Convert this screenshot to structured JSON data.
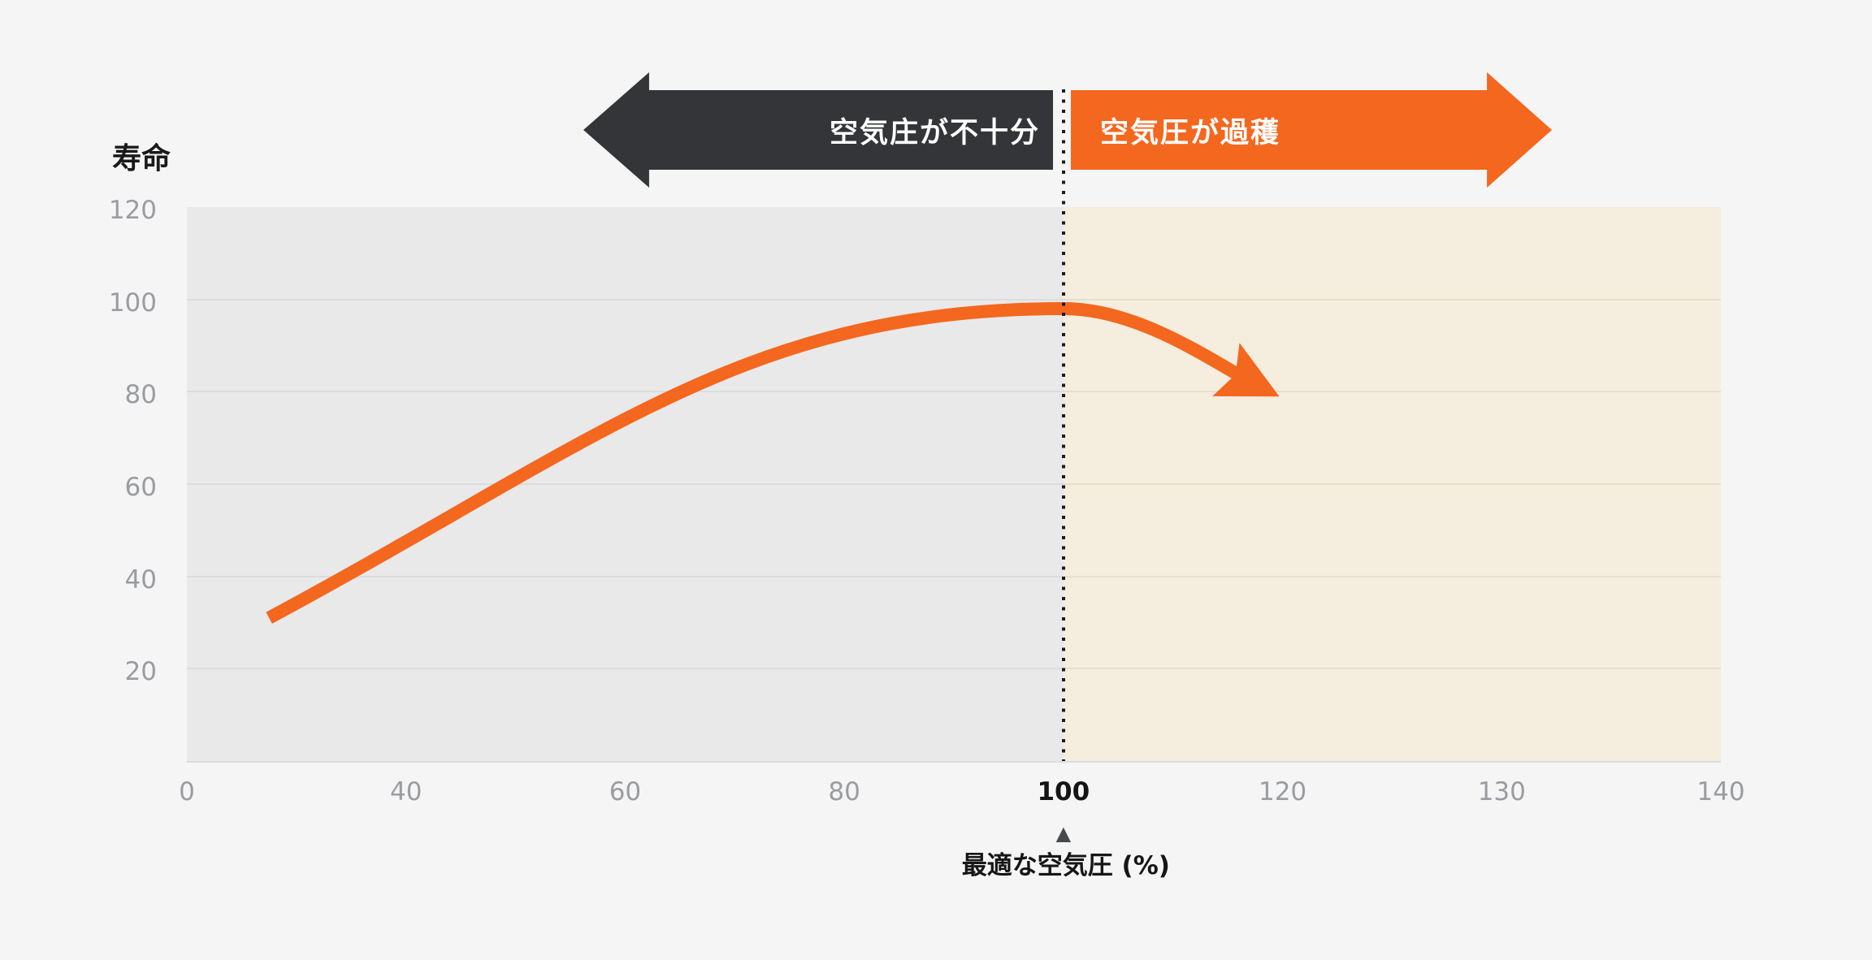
{
  "colors": {
    "page_bg": "#f5f5f6",
    "tick_text": "#9a9ca0",
    "emphasis_text": "#141414"
  },
  "banners": {
    "left": {
      "label": "空気庄が不十分",
      "color": "#343539",
      "text_color": "#ffffff",
      "direction": "left"
    },
    "right": {
      "label": "空気圧が過穫",
      "color": "#f4671f",
      "text_color": "#ffffff",
      "direction": "right"
    }
  },
  "chart_data": {
    "type": "line",
    "title": "",
    "ylabel": "寿命",
    "xlabel": "最適な空気圧 (%)",
    "x_tick_labels": [
      "0",
      "40",
      "60",
      "80",
      "100",
      "120",
      "130",
      "140"
    ],
    "x_tick_emphasized": "100",
    "y_ticks": [
      20,
      40,
      60,
      80,
      100,
      120
    ],
    "ylim": [
      0,
      120
    ],
    "grid": "horizontal",
    "legend": "none",
    "regions": [
      {
        "name": "under-inflation-zone",
        "from": 0,
        "to": 100,
        "fill": "#e9e9ea",
        "gridline_color": "#dcdcde"
      },
      {
        "name": "over-inflation-zone",
        "from": 100,
        "to": 140,
        "fill": "#f5edde",
        "gridline_color": "#e8decd"
      }
    ],
    "divider": {
      "x": 100,
      "style": "dotted",
      "color": "#1c1c1e"
    },
    "optimal_marker": {
      "x": 100,
      "symbol": "▲"
    },
    "series": [
      {
        "name": "tire-life-curve",
        "color": "#f4671f",
        "stroke_width": 16,
        "arrow_end": true,
        "points": [
          {
            "x": 15,
            "y": 31
          },
          {
            "x": 100,
            "y": 98
          },
          {
            "x": 118,
            "y": 81
          }
        ]
      }
    ]
  }
}
